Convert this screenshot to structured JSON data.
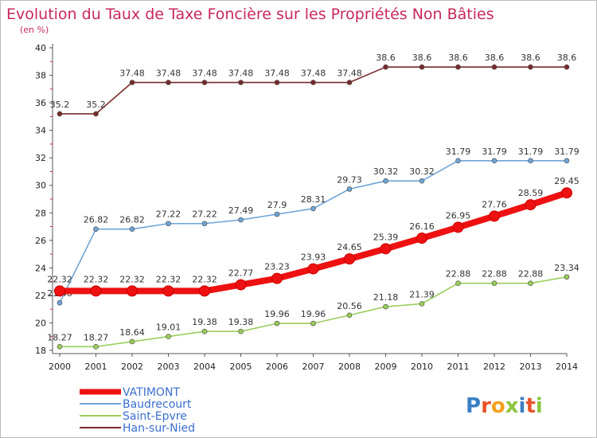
{
  "chart_data": {
    "type": "line",
    "title": "Evolution du Taux de Taxe Foncière sur les Propriétés Non Bâties",
    "subtitle": "(en %)",
    "x": [
      "2000",
      "2001",
      "2002",
      "2003",
      "2004",
      "2005",
      "2006",
      "2007",
      "2008",
      "2009",
      "2010",
      "2011",
      "2012",
      "2013",
      "2014"
    ],
    "ylim": [
      18,
      40
    ],
    "yticks": [
      18,
      20,
      22,
      24,
      26,
      28,
      30,
      32,
      34,
      36,
      38,
      40
    ],
    "grid": false,
    "legend_position": "bottom-left",
    "series": [
      {
        "name": "VATIMONT",
        "color": "#ee1111",
        "emphasis": true,
        "values": [
          22.32,
          22.32,
          22.32,
          22.32,
          22.32,
          22.77,
          23.23,
          23.93,
          24.65,
          25.39,
          26.16,
          26.95,
          27.76,
          28.59,
          29.45
        ],
        "labels": [
          "22.32",
          "22.32",
          "22.32",
          "22.32",
          "22.32",
          "22.77",
          "23.23",
          "23.93",
          "24.65",
          "25.39",
          "26.16",
          "26.95",
          "27.76",
          "28.59",
          "29.45"
        ]
      },
      {
        "name": "Baudrecourt",
        "color": "#6fa5d6",
        "values": [
          21.46,
          26.82,
          26.82,
          27.22,
          27.22,
          27.49,
          27.9,
          28.31,
          29.73,
          30.32,
          30.32,
          31.79,
          31.79,
          31.79,
          31.79
        ],
        "labels": [
          "21.46",
          "26.82",
          "26.82",
          "27.22",
          "27.22",
          "27.49",
          "27.9",
          "28.31",
          "29.73",
          "30.32",
          "30.32",
          "31.79",
          "31.79",
          "31.79",
          "31.79"
        ]
      },
      {
        "name": "Saint-Epvre",
        "color": "#9acd5a",
        "values": [
          18.27,
          18.27,
          18.64,
          19.01,
          19.38,
          19.38,
          19.96,
          19.96,
          20.56,
          21.18,
          21.39,
          22.88,
          22.88,
          22.88,
          23.34
        ],
        "labels": [
          "18.27",
          "18.27",
          "18.64",
          "19.01",
          "19.38",
          "19.38",
          "19.96",
          "19.96",
          "20.56",
          "21.18",
          "21.39",
          "22.88",
          "22.88",
          "22.88",
          "23.34"
        ]
      },
      {
        "name": "Han-sur-Nied",
        "color": "#7a2a2a",
        "values": [
          35.2,
          35.2,
          37.48,
          37.48,
          37.48,
          37.48,
          37.48,
          37.48,
          37.48,
          38.6,
          38.6,
          38.6,
          38.6,
          38.6,
          38.6
        ],
        "labels": [
          "35.2",
          "35.2",
          "37.48",
          "37.48",
          "37.48",
          "37.48",
          "37.48",
          "37.48",
          "37.48",
          "38.6",
          "38.6",
          "38.6",
          "38.6",
          "38.6",
          "38.6"
        ]
      }
    ]
  },
  "logo": {
    "text": "Proxiti",
    "colors": [
      "#3a7fc4",
      "#e8532a",
      "#f2a01e",
      "#8cc63f",
      "#3a7fc4",
      "#e8532a",
      "#8cc63f"
    ]
  }
}
